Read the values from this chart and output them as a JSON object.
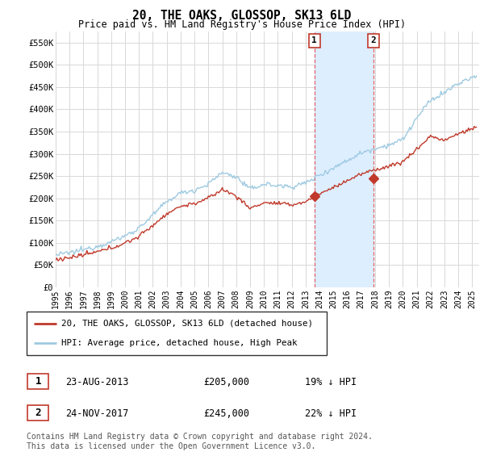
{
  "title": "20, THE OAKS, GLOSSOP, SK13 6LD",
  "subtitle": "Price paid vs. HM Land Registry's House Price Index (HPI)",
  "background_color": "#ffffff",
  "grid_color": "#d8d8d8",
  "ylim": [
    0,
    575000
  ],
  "xlim_start": 1995.0,
  "xlim_end": 2025.5,
  "yticks": [
    0,
    50000,
    100000,
    150000,
    200000,
    250000,
    300000,
    350000,
    400000,
    450000,
    500000,
    550000
  ],
  "ytick_labels": [
    "£0",
    "£50K",
    "£100K",
    "£150K",
    "£200K",
    "£250K",
    "£300K",
    "£350K",
    "£400K",
    "£450K",
    "£500K",
    "£550K"
  ],
  "xtick_years": [
    1995,
    1996,
    1997,
    1998,
    1999,
    2000,
    2001,
    2002,
    2003,
    2004,
    2005,
    2006,
    2007,
    2008,
    2009,
    2010,
    2011,
    2012,
    2013,
    2014,
    2015,
    2016,
    2017,
    2018,
    2019,
    2020,
    2021,
    2022,
    2023,
    2024,
    2025
  ],
  "hpi_color": "#9ecae1",
  "price_color": "#c0392b",
  "shade_color": "#ddeeff",
  "vline_color": "#e05050",
  "shade_x1": 2013.64,
  "shade_x2": 2017.9,
  "marker1_x": 2013.64,
  "marker1_y": 205000,
  "marker2_x": 2017.9,
  "marker2_y": 245000,
  "marker_color": "#c0392b",
  "sale1_date": "23-AUG-2013",
  "sale1_price": "£205,000",
  "sale1_note": "19% ↓ HPI",
  "sale2_date": "24-NOV-2017",
  "sale2_price": "£245,000",
  "sale2_note": "22% ↓ HPI",
  "legend_label_red": "20, THE OAKS, GLOSSOP, SK13 6LD (detached house)",
  "legend_label_blue": "HPI: Average price, detached house, High Peak",
  "footer": "Contains HM Land Registry data © Crown copyright and database right 2024.\nThis data is licensed under the Open Government Licence v3.0.",
  "hpi_key_points": {
    "1995.0": 72000,
    "1996.0": 77000,
    "1997.0": 84000,
    "1998.0": 92000,
    "1999.0": 102000,
    "2000.0": 115000,
    "2001.0": 133000,
    "2002.0": 162000,
    "2003.0": 192000,
    "2004.0": 212000,
    "2005.0": 218000,
    "2006.0": 232000,
    "2007.0": 258000,
    "2008.0": 248000,
    "2009.0": 220000,
    "2010.0": 232000,
    "2011.0": 228000,
    "2012.0": 226000,
    "2013.0": 234000,
    "2014.0": 252000,
    "2015.0": 268000,
    "2016.0": 285000,
    "2017.0": 302000,
    "2018.0": 312000,
    "2019.0": 320000,
    "2020.0": 332000,
    "2021.0": 380000,
    "2022.0": 420000,
    "2023.0": 438000,
    "2024.0": 458000,
    "2025.3": 475000
  },
  "price_key_points": {
    "1995.0": 62000,
    "1996.0": 66000,
    "1997.0": 72000,
    "1998.0": 79000,
    "1999.0": 88000,
    "2000.0": 99000,
    "2001.0": 114000,
    "2002.0": 139000,
    "2003.0": 165000,
    "2004.0": 182000,
    "2005.0": 188000,
    "2006.0": 200000,
    "2007.0": 220000,
    "2008.0": 205000,
    "2009.0": 177000,
    "2010.0": 190000,
    "2011.0": 188000,
    "2012.0": 185000,
    "2013.0": 192000,
    "2014.0": 210000,
    "2015.0": 224000,
    "2016.0": 240000,
    "2017.0": 254000,
    "2018.0": 264000,
    "2019.0": 272000,
    "2020.0": 282000,
    "2021.0": 310000,
    "2022.0": 340000,
    "2023.0": 330000,
    "2024.0": 345000,
    "2025.3": 360000
  }
}
